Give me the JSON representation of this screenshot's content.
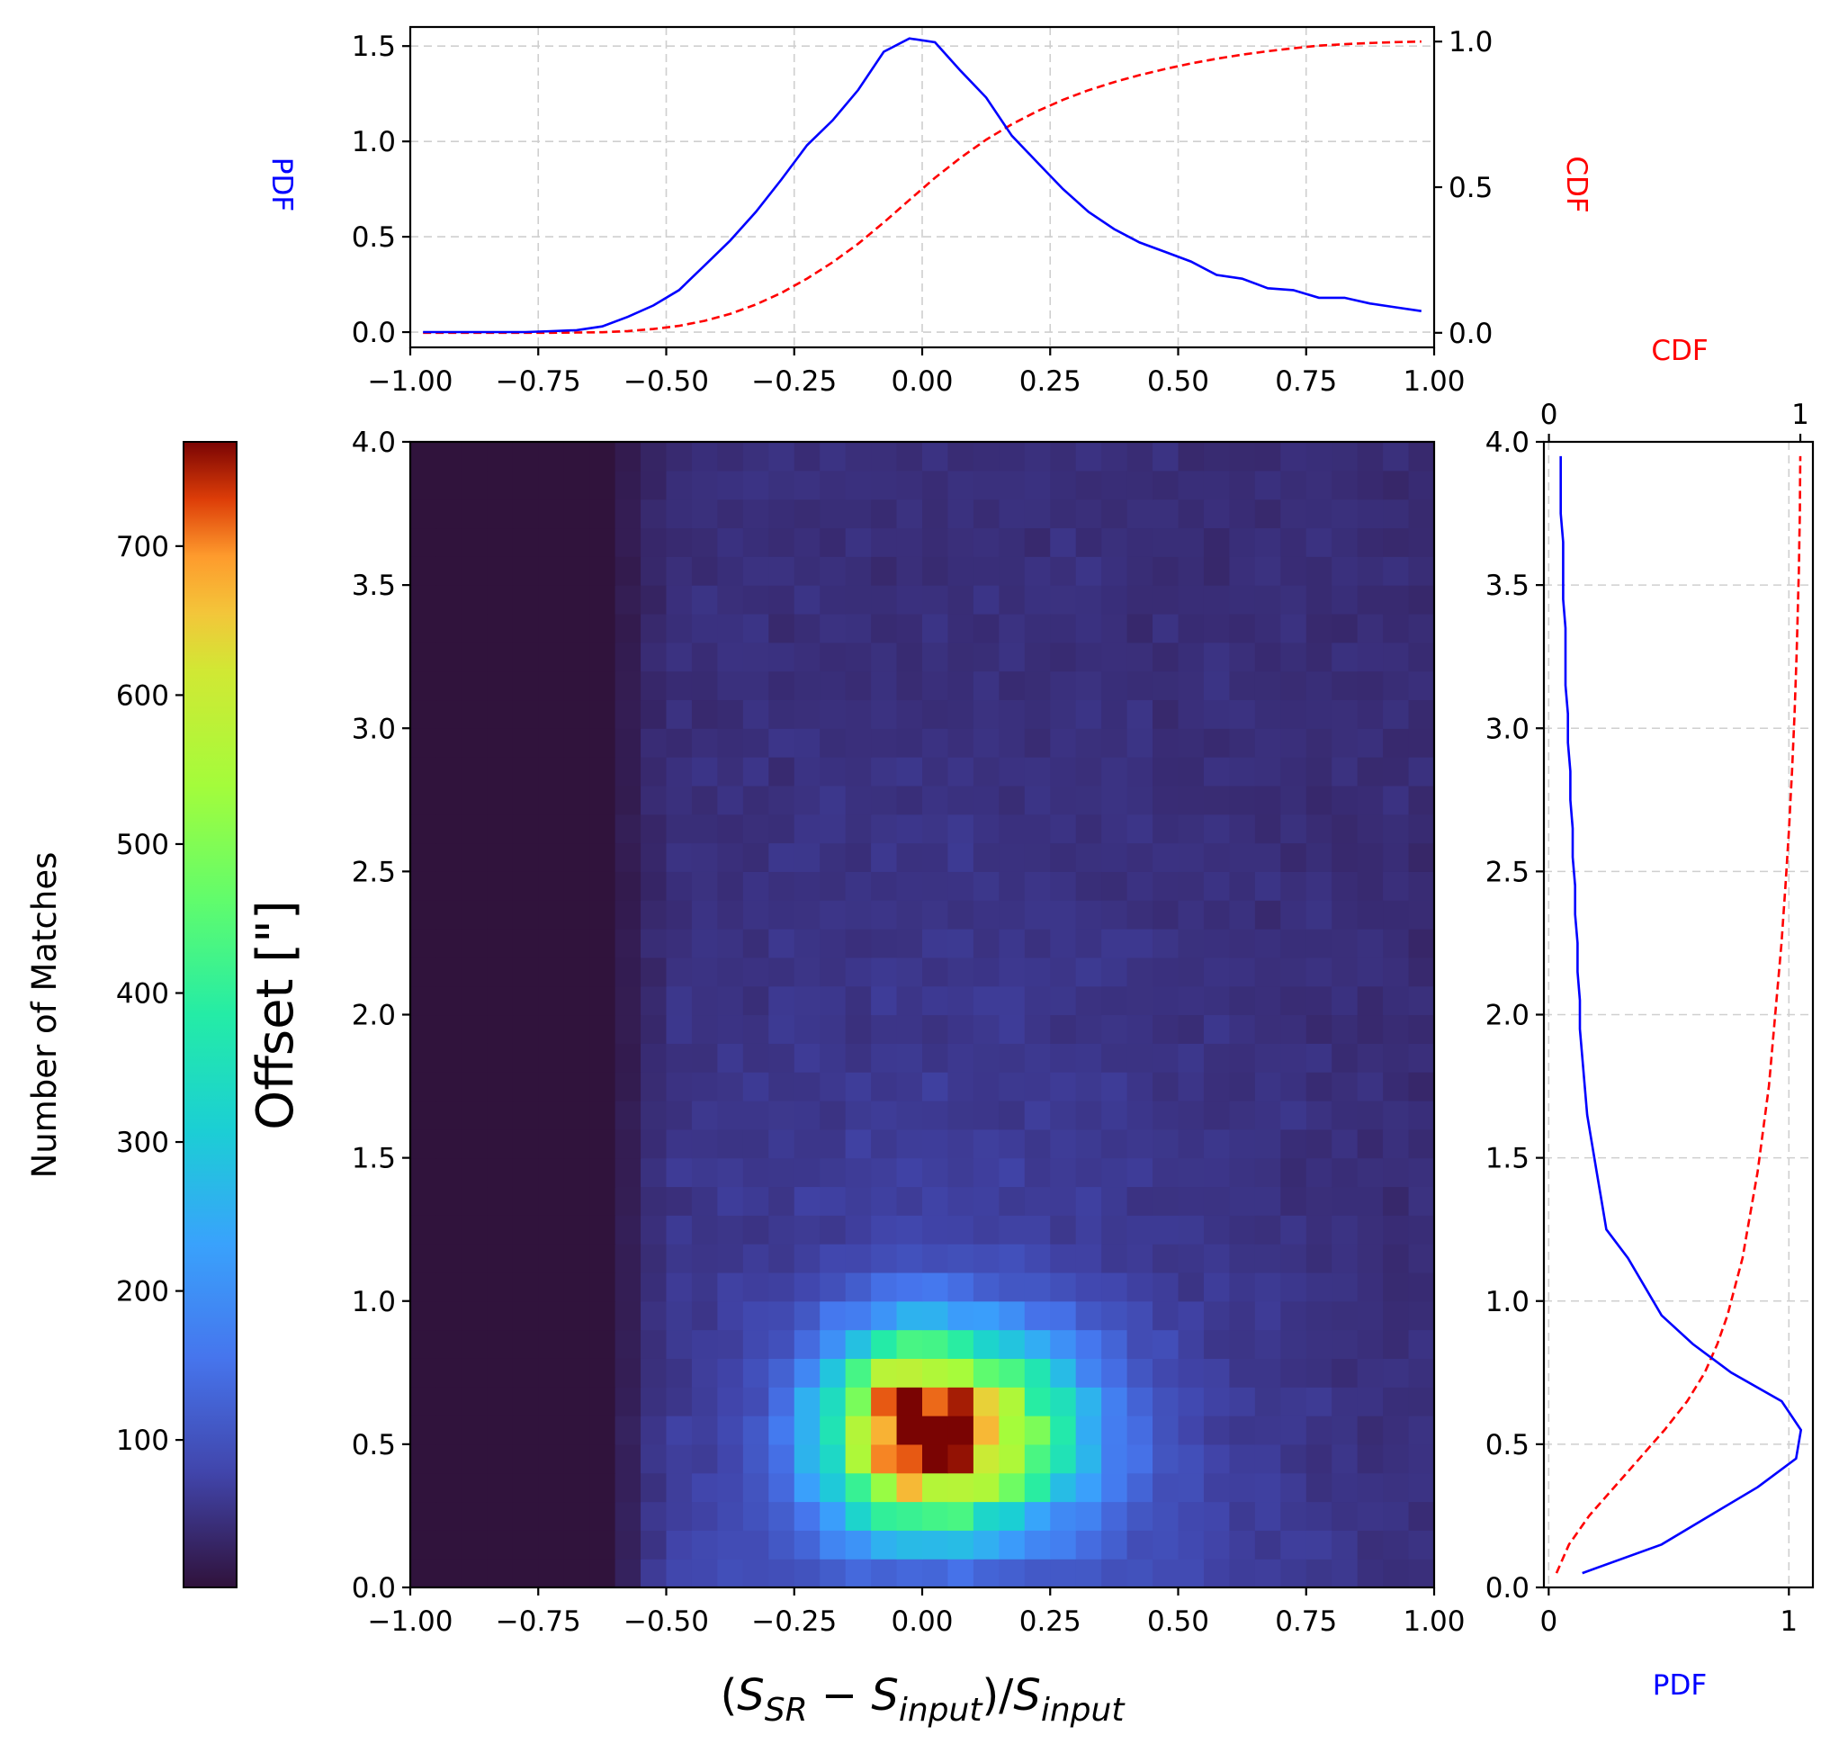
{
  "chart_data": [
    {
      "panel": "top-marginal",
      "type": "line",
      "title": "",
      "x_ticks": [
        "−1.00",
        "−0.75",
        "−0.50",
        "−0.25",
        "0.00",
        "0.25",
        "0.50",
        "0.75",
        "1.00"
      ],
      "xlim": [
        -1.0,
        1.0
      ],
      "ylabel_left": "PDF",
      "ylabel_right": "CDF",
      "ylim_left": [
        -0.08,
        1.6
      ],
      "ylim_right": [
        -0.05,
        1.05
      ],
      "y_ticks_left": [
        "0.0",
        "0.5",
        "1.0",
        "1.5"
      ],
      "y_ticks_right": [
        "0.0",
        "0.5",
        "1.0"
      ],
      "grid": true,
      "series": [
        {
          "name": "PDF",
          "color": "#0000ff",
          "style": "solid",
          "axis": "left",
          "x": [
            -0.975,
            -0.925,
            -0.875,
            -0.825,
            -0.775,
            -0.725,
            -0.675,
            -0.625,
            -0.575,
            -0.525,
            -0.475,
            -0.425,
            -0.375,
            -0.325,
            -0.275,
            -0.225,
            -0.175,
            -0.125,
            -0.075,
            -0.025,
            0.025,
            0.075,
            0.125,
            0.175,
            0.225,
            0.275,
            0.325,
            0.375,
            0.425,
            0.475,
            0.525,
            0.575,
            0.625,
            0.675,
            0.725,
            0.775,
            0.825,
            0.875,
            0.925,
            0.975
          ],
          "values": [
            0.0,
            0.0,
            0.0,
            0.0,
            0.0,
            0.005,
            0.01,
            0.03,
            0.08,
            0.14,
            0.22,
            0.35,
            0.48,
            0.63,
            0.8,
            0.98,
            1.11,
            1.27,
            1.47,
            1.54,
            1.52,
            1.37,
            1.23,
            1.03,
            0.89,
            0.75,
            0.63,
            0.54,
            0.47,
            0.42,
            0.37,
            0.3,
            0.28,
            0.23,
            0.22,
            0.18,
            0.18,
            0.15,
            0.13,
            0.11
          ]
        },
        {
          "name": "CDF",
          "color": "#ff0000",
          "style": "dashed",
          "axis": "right",
          "x": [
            -0.975,
            -0.925,
            -0.875,
            -0.825,
            -0.775,
            -0.725,
            -0.675,
            -0.625,
            -0.575,
            -0.525,
            -0.475,
            -0.425,
            -0.375,
            -0.325,
            -0.275,
            -0.225,
            -0.175,
            -0.125,
            -0.075,
            -0.025,
            0.025,
            0.075,
            0.125,
            0.175,
            0.225,
            0.275,
            0.325,
            0.375,
            0.425,
            0.475,
            0.525,
            0.575,
            0.625,
            0.675,
            0.725,
            0.775,
            0.825,
            0.875,
            0.925,
            0.975
          ],
          "values": [
            0.0,
            0.0,
            0.0,
            0.0,
            0.0,
            0.0,
            0.001,
            0.002,
            0.006,
            0.013,
            0.024,
            0.041,
            0.065,
            0.097,
            0.137,
            0.186,
            0.242,
            0.306,
            0.379,
            0.456,
            0.532,
            0.601,
            0.663,
            0.716,
            0.761,
            0.8,
            0.833,
            0.861,
            0.885,
            0.906,
            0.925,
            0.941,
            0.955,
            0.967,
            0.977,
            0.986,
            0.991,
            0.995,
            0.998,
            1.0
          ]
        }
      ]
    },
    {
      "panel": "main-heatmap",
      "type": "heatmap",
      "xlabel": "(S_SR − S_input)/S_input",
      "ylabel": "Offset [\"]",
      "xlim": [
        -1.0,
        1.0
      ],
      "ylim": [
        0.0,
        4.0
      ],
      "x_ticks": [
        "−1.00",
        "−0.75",
        "−0.50",
        "−0.25",
        "0.00",
        "0.25",
        "0.50",
        "0.75",
        "1.00"
      ],
      "y_ticks": [
        "0.0",
        "0.5",
        "1.0",
        "1.5",
        "2.0",
        "2.5",
        "3.0",
        "3.5",
        "4.0"
      ],
      "x_bins": 40,
      "y_bins": 40,
      "peak_count": 770,
      "peak_location": {
        "x": 0.0,
        "y": 0.55
      },
      "colormap": "turbo",
      "colorbar": {
        "label": "Number of Matches",
        "range": [
          1,
          770
        ],
        "ticks": [
          "100",
          "200",
          "300",
          "400",
          "500",
          "600",
          "700"
        ]
      }
    },
    {
      "panel": "right-marginal",
      "type": "line",
      "xlabel_bottom": "PDF",
      "xlabel_top": "CDF",
      "x_ticks_bottom": [
        "0",
        "1"
      ],
      "x_ticks_top": [
        "0",
        "1"
      ],
      "xlim_bottom": [
        -0.02,
        1.1
      ],
      "xlim_top": [
        -0.02,
        1.05
      ],
      "y_ticks": [
        "0.0",
        "0.5",
        "1.0",
        "1.5",
        "2.0",
        "2.5",
        "3.0",
        "3.5",
        "4.0"
      ],
      "ylim": [
        0.0,
        4.0
      ],
      "grid": true,
      "series": [
        {
          "name": "PDF",
          "color": "#0000ff",
          "style": "solid",
          "axis": "bottom",
          "y": [
            0.05,
            0.15,
            0.25,
            0.35,
            0.45,
            0.55,
            0.65,
            0.75,
            0.85,
            0.95,
            1.05,
            1.15,
            1.25,
            1.35,
            1.45,
            1.55,
            1.65,
            1.75,
            1.85,
            1.95,
            2.05,
            2.15,
            2.25,
            2.35,
            2.45,
            2.55,
            2.65,
            2.75,
            2.85,
            2.95,
            3.05,
            3.15,
            3.25,
            3.35,
            3.45,
            3.55,
            3.65,
            3.75,
            3.85,
            3.95
          ],
          "values": [
            0.14,
            0.47,
            0.67,
            0.87,
            1.03,
            1.05,
            0.97,
            0.76,
            0.6,
            0.47,
            0.4,
            0.33,
            0.24,
            0.22,
            0.2,
            0.18,
            0.16,
            0.15,
            0.14,
            0.13,
            0.13,
            0.12,
            0.12,
            0.11,
            0.11,
            0.1,
            0.1,
            0.09,
            0.09,
            0.08,
            0.08,
            0.07,
            0.07,
            0.07,
            0.06,
            0.06,
            0.06,
            0.05,
            0.05,
            0.05
          ]
        },
        {
          "name": "CDF",
          "color": "#ff0000",
          "style": "dashed",
          "axis": "top",
          "y": [
            0.05,
            0.15,
            0.25,
            0.35,
            0.45,
            0.55,
            0.65,
            0.75,
            0.85,
            0.95,
            1.05,
            1.15,
            1.25,
            1.35,
            1.45,
            1.55,
            1.65,
            1.75,
            1.85,
            1.95,
            2.05,
            2.15,
            2.25,
            2.35,
            2.45,
            2.55,
            2.65,
            2.75,
            2.85,
            2.95,
            3.05,
            3.15,
            3.25,
            3.35,
            3.45,
            3.55,
            3.65,
            3.75,
            3.85,
            3.95
          ],
          "values": [
            0.03,
            0.08,
            0.16,
            0.26,
            0.36,
            0.46,
            0.55,
            0.62,
            0.67,
            0.71,
            0.74,
            0.77,
            0.79,
            0.81,
            0.83,
            0.845,
            0.86,
            0.875,
            0.885,
            0.895,
            0.905,
            0.915,
            0.925,
            0.933,
            0.941,
            0.948,
            0.955,
            0.961,
            0.967,
            0.972,
            0.977,
            0.981,
            0.985,
            0.988,
            0.991,
            0.994,
            0.996,
            0.998,
            0.999,
            1.0
          ]
        }
      ]
    }
  ]
}
